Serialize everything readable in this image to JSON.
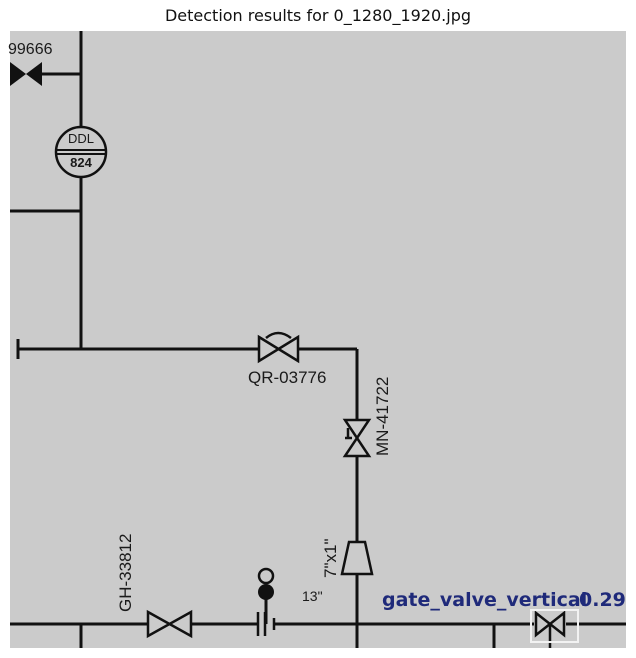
{
  "title": "Detection results for 0_1280_1920.jpg",
  "colors": {
    "background": "#cbcbcb",
    "line": "#111111",
    "detection": "#1f2a7a"
  },
  "labels": {
    "top_left_tag": "99666",
    "instrument_top": "DDL",
    "instrument_bottom": "824",
    "valve_qr": "QR-03776",
    "valve_mn": "MN-41722",
    "valve_gh": "GH-33812",
    "reducer": "7\"x1\"",
    "size_13": "13\""
  },
  "detection": {
    "class_name": "gate_valve_vertical",
    "score": "0.29"
  }
}
